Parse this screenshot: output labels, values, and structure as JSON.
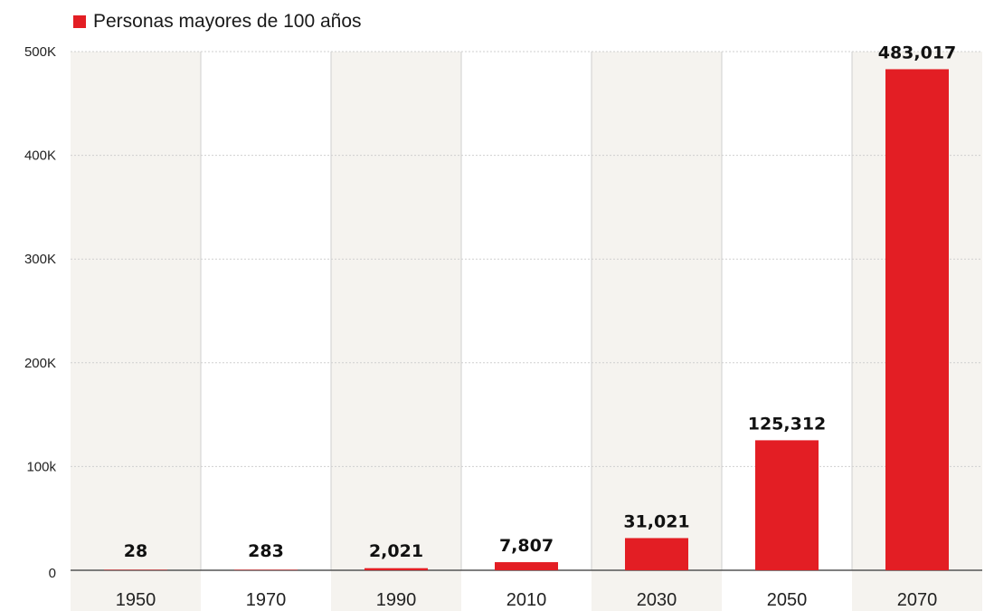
{
  "chart_data": {
    "type": "bar",
    "categories": [
      "1950",
      "1970",
      "1990",
      "2010",
      "2030",
      "2050",
      "2070"
    ],
    "series": [
      {
        "name": "Personas mayores de 100 años",
        "values": [
          28,
          283,
          2021,
          7807,
          31021,
          125312,
          483017
        ],
        "data_labels": [
          "28",
          "283",
          "2,021",
          "7,807",
          "31,021",
          "125,312",
          "483,017"
        ]
      }
    ],
    "ylim": [
      0,
      500000
    ],
    "yticks": [
      0,
      100000,
      200000,
      300000,
      400000,
      500000
    ],
    "ytick_labels": [
      "0",
      "100k",
      "200K",
      "300K",
      "400K",
      "500K"
    ],
    "grid": true,
    "legend_position": "top-left",
    "colors": {
      "bar": "#e31e24",
      "shade": "#f5f3ef",
      "grid": "#cfcfcf"
    }
  }
}
